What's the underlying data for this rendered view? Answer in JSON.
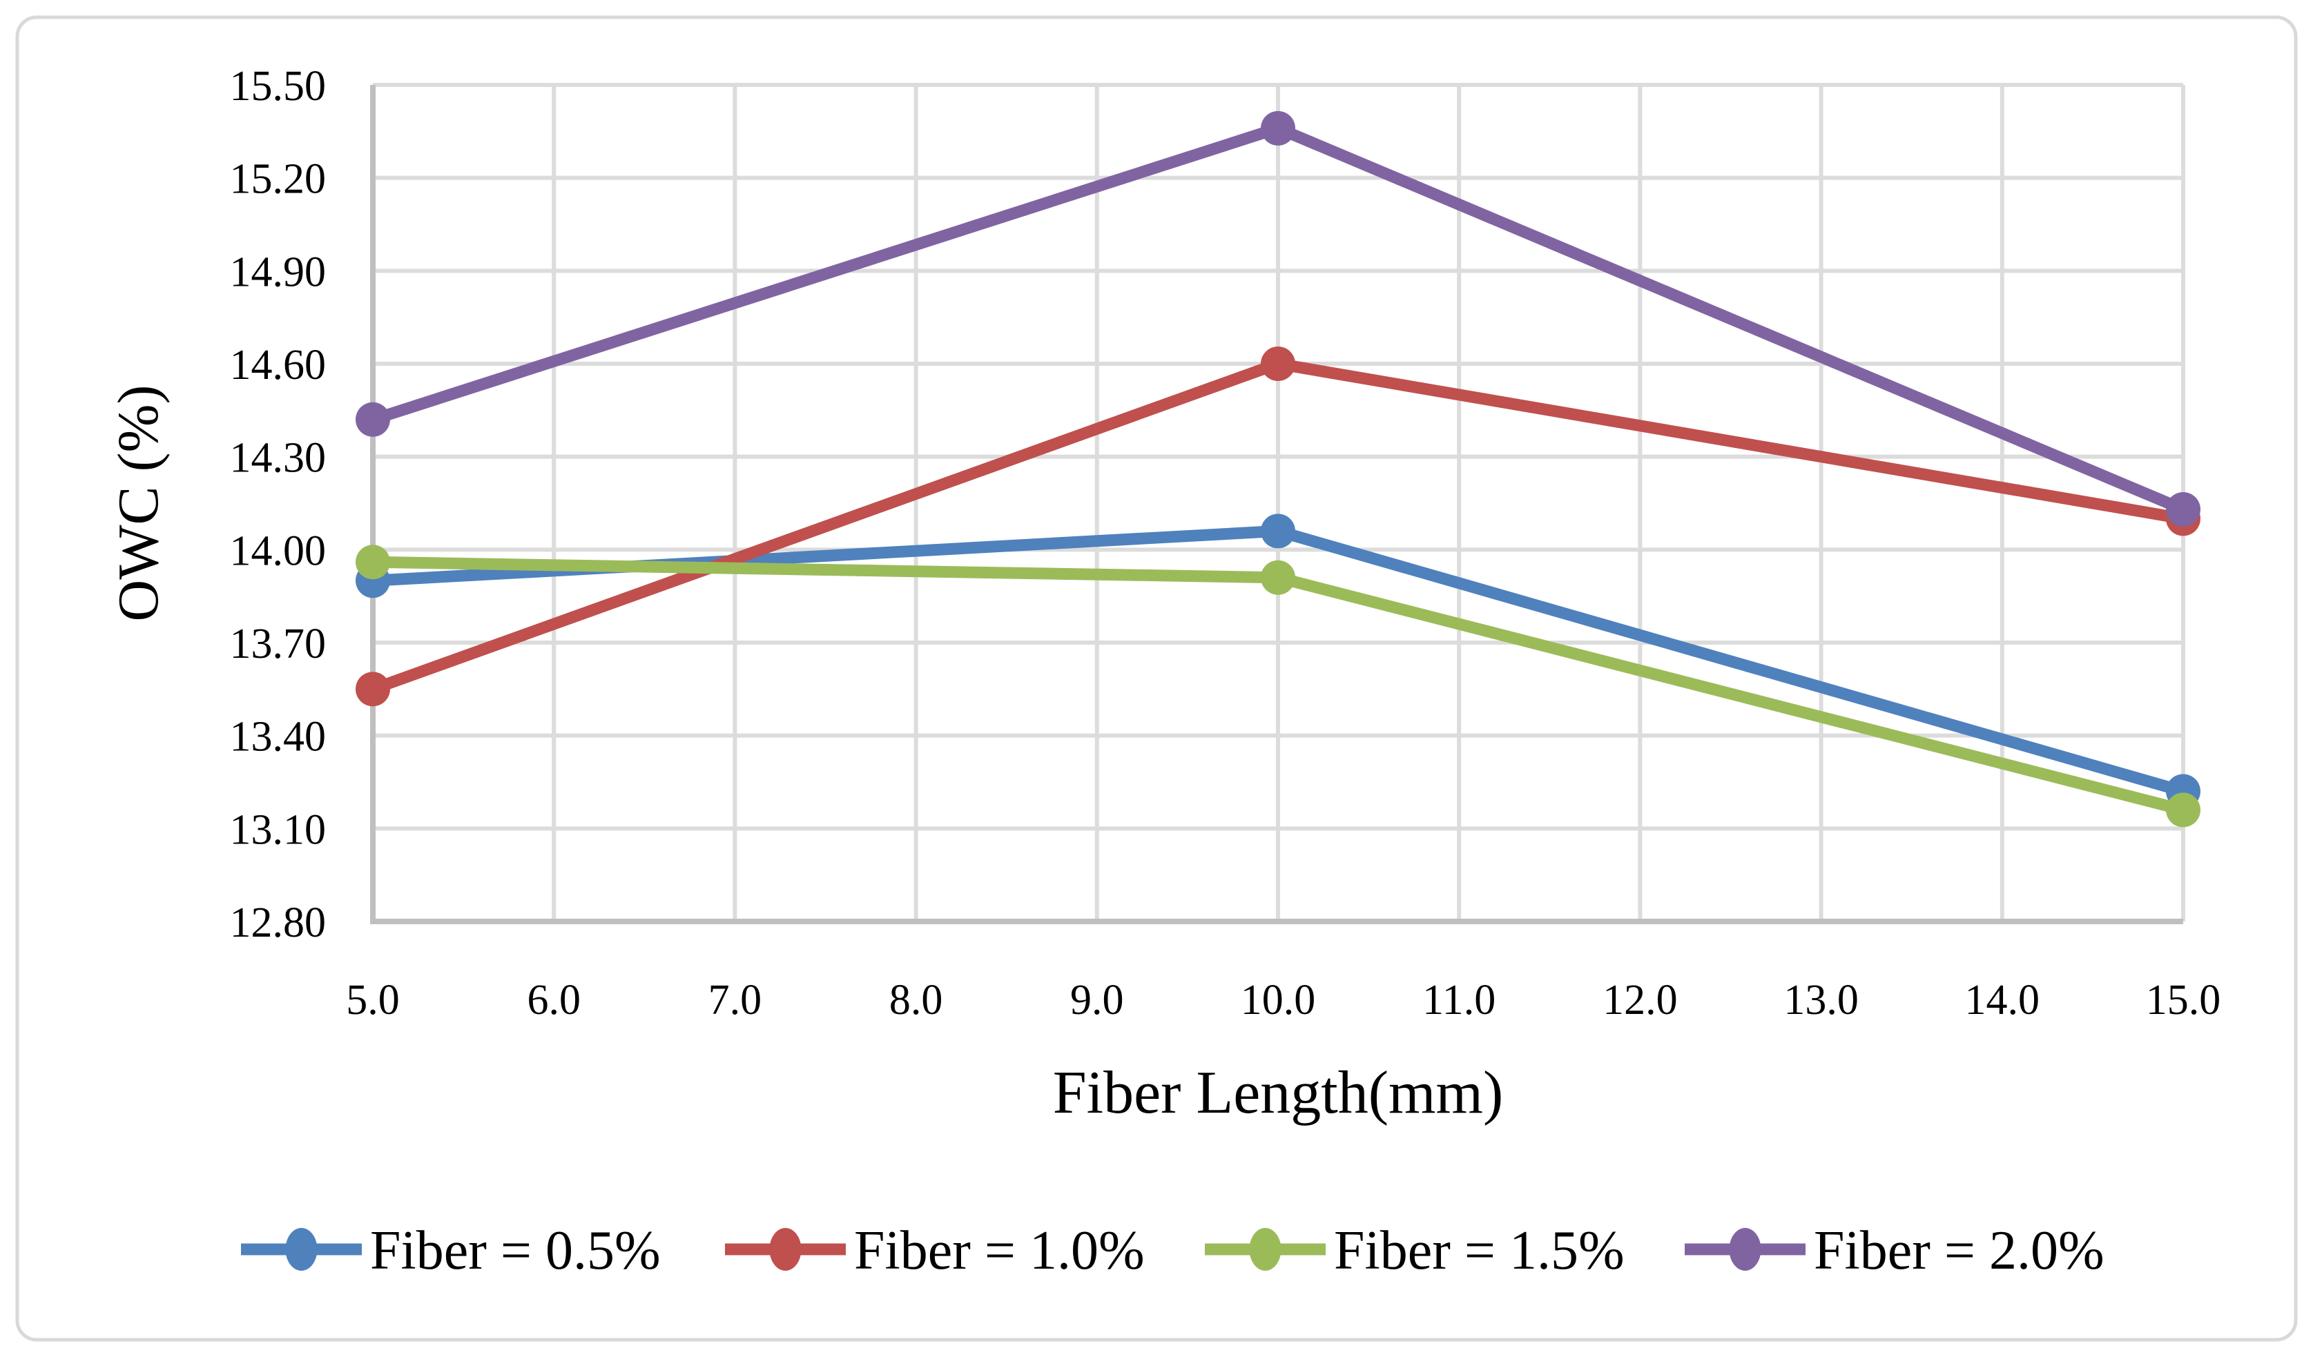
{
  "figure": {
    "background": "#FFFFFF",
    "border_color": "#D9D9D9"
  },
  "chart_data": {
    "type": "line",
    "title": "",
    "xlabel": "Fiber Length(mm)",
    "ylabel": "OWC (%)",
    "xlim": [
      5.0,
      15.0
    ],
    "ylim": [
      12.8,
      15.5
    ],
    "x": [
      5.0,
      10.0,
      15.0
    ],
    "x_tick_labels": [
      "5.0",
      "6.0",
      "7.0",
      "8.0",
      "9.0",
      "10.0",
      "11.0",
      "12.0",
      "13.0",
      "14.0",
      "15.0"
    ],
    "y_tick_labels": [
      "12.80",
      "13.10",
      "13.40",
      "13.70",
      "14.00",
      "14.30",
      "14.60",
      "14.90",
      "15.20",
      "15.50"
    ],
    "grid": true,
    "grid_color": "#DCDCDC",
    "axis_color": "#BFBFBF",
    "legend_position": "bottom",
    "series": [
      {
        "name": "Fiber = 0.5%",
        "color": "#4F81BD",
        "values": [
          13.9,
          14.06,
          13.22
        ]
      },
      {
        "name": "Fiber = 1.0%",
        "color": "#C0504D",
        "values": [
          13.55,
          14.6,
          14.1
        ]
      },
      {
        "name": "Fiber = 1.5%",
        "color": "#9BBB59",
        "values": [
          13.96,
          13.91,
          13.16
        ]
      },
      {
        "name": "Fiber = 2.0%",
        "color": "#8064A2",
        "values": [
          14.42,
          15.36,
          14.13
        ]
      }
    ]
  }
}
